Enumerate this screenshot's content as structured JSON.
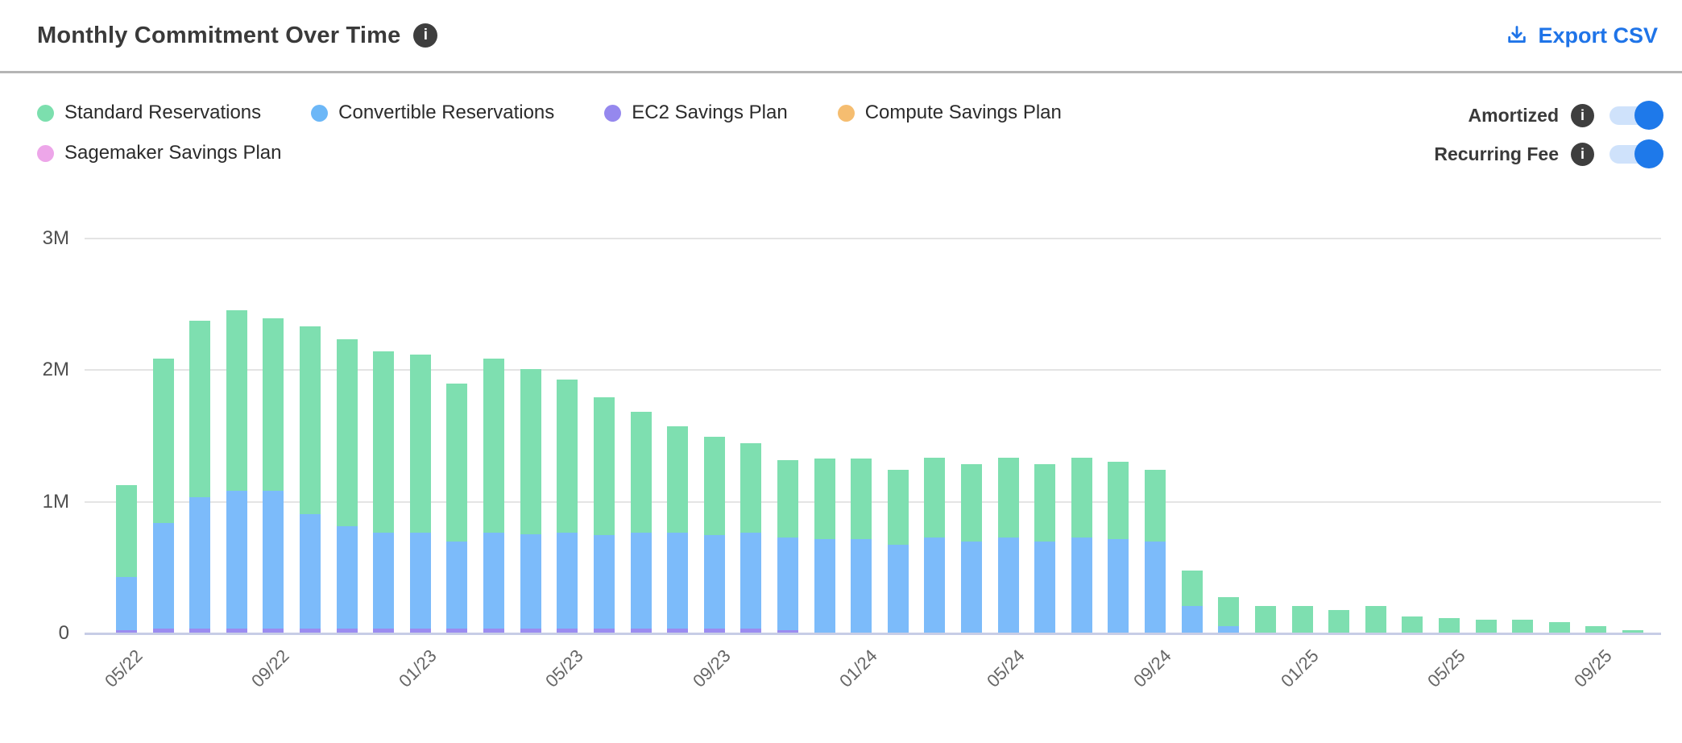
{
  "header": {
    "title": "Monthly Commitment Over Time",
    "title_info_icon": "i",
    "export_label": "Export CSV"
  },
  "legend": {
    "items": [
      {
        "label": "Standard Reservations",
        "color": "#7cdfae"
      },
      {
        "label": "Convertible Reservations",
        "color": "#6cb7f7"
      },
      {
        "label": "EC2 Savings Plan",
        "color": "#9588ee"
      },
      {
        "label": "Compute Savings Plan",
        "color": "#f5bd70"
      },
      {
        "label": "Sagemaker Savings Plan",
        "color": "#eda6e9"
      }
    ]
  },
  "toggles": [
    {
      "label": "Amortized",
      "info_icon": "i",
      "state": "on"
    },
    {
      "label": "Recurring Fee",
      "info_icon": "i",
      "state": "on"
    }
  ],
  "colors": {
    "accent_blue": "#1f74e8",
    "toggle_track": "#cfe2fb",
    "toggle_knob": "#1e79ea",
    "info_badge_bg": "#3e3e3e",
    "divider": "#b5b5b5",
    "gridline": "#e4e4e4",
    "axis_baseline": "#c7cde6"
  },
  "chart_data": {
    "type": "bar",
    "stacked": true,
    "values_unit": "millions",
    "ylim": [
      0,
      3
    ],
    "yticks": [
      {
        "label": "0",
        "value": 0
      },
      {
        "label": "1M",
        "value": 1
      },
      {
        "label": "2M",
        "value": 2
      },
      {
        "label": "3M",
        "value": 3
      }
    ],
    "xtick_every": 4,
    "categories": [
      "05/22",
      "06/22",
      "07/22",
      "08/22",
      "09/22",
      "10/22",
      "11/22",
      "12/22",
      "01/23",
      "02/23",
      "03/23",
      "04/23",
      "05/23",
      "06/23",
      "07/23",
      "08/23",
      "09/23",
      "10/23",
      "11/23",
      "12/23",
      "01/24",
      "02/24",
      "03/24",
      "04/24",
      "05/24",
      "06/24",
      "07/24",
      "08/24",
      "09/24",
      "10/24",
      "11/24",
      "12/24",
      "01/25",
      "02/25",
      "03/25",
      "04/25",
      "05/25",
      "06/25",
      "07/25",
      "08/25",
      "09/25",
      "10/25"
    ],
    "stack_order_bottom_to_top": [
      "Sagemaker Savings Plan",
      "EC2 Savings Plan",
      "Compute Savings Plan",
      "Convertible Reservations",
      "Standard Reservations"
    ],
    "series": [
      {
        "name": "Standard Reservations",
        "color": "#7edfb0",
        "values": [
          0.7,
          1.25,
          1.34,
          1.37,
          1.31,
          1.43,
          1.42,
          1.38,
          1.35,
          1.2,
          1.32,
          1.25,
          1.16,
          1.05,
          0.92,
          0.81,
          0.75,
          0.68,
          0.59,
          0.61,
          0.61,
          0.57,
          0.61,
          0.59,
          0.61,
          0.59,
          0.61,
          0.59,
          0.55,
          0.27,
          0.22,
          0.2,
          0.2,
          0.17,
          0.2,
          0.12,
          0.11,
          0.1,
          0.1,
          0.08,
          0.05,
          0.02
        ]
      },
      {
        "name": "Convertible Reservations",
        "color": "#7cbbfa",
        "values": [
          0.4,
          0.8,
          1.0,
          1.05,
          1.05,
          0.87,
          0.78,
          0.73,
          0.73,
          0.66,
          0.73,
          0.72,
          0.73,
          0.71,
          0.73,
          0.73,
          0.71,
          0.73,
          0.7,
          0.71,
          0.71,
          0.67,
          0.72,
          0.69,
          0.72,
          0.69,
          0.72,
          0.71,
          0.69,
          0.2,
          0.05,
          0,
          0,
          0,
          0,
          0,
          0,
          0,
          0,
          0,
          0,
          0
        ]
      },
      {
        "name": "EC2 Savings Plan",
        "color": "#9b8cf0",
        "values": [
          0.02,
          0.03,
          0.03,
          0.03,
          0.03,
          0.03,
          0.03,
          0.03,
          0.03,
          0.03,
          0.03,
          0.03,
          0.03,
          0.03,
          0.03,
          0.03,
          0.03,
          0.03,
          0.02,
          0,
          0,
          0,
          0,
          0,
          0,
          0,
          0,
          0,
          0,
          0,
          0,
          0,
          0,
          0,
          0,
          0,
          0,
          0,
          0,
          0,
          0,
          0
        ]
      },
      {
        "name": "Compute Savings Plan",
        "color": "#f5bd70",
        "values": [
          0,
          0,
          0,
          0,
          0,
          0,
          0,
          0,
          0,
          0,
          0,
          0,
          0,
          0,
          0,
          0,
          0,
          0,
          0,
          0,
          0,
          0,
          0,
          0,
          0,
          0,
          0,
          0,
          0,
          0,
          0,
          0,
          0,
          0,
          0,
          0,
          0,
          0,
          0,
          0,
          0,
          0
        ]
      },
      {
        "name": "Sagemaker Savings Plan",
        "color": "#eda6e9",
        "values": [
          0,
          0,
          0,
          0,
          0,
          0,
          0,
          0,
          0,
          0,
          0,
          0,
          0,
          0,
          0,
          0,
          0,
          0,
          0,
          0,
          0,
          0,
          0,
          0,
          0,
          0,
          0,
          0,
          0,
          0,
          0,
          0,
          0,
          0,
          0,
          0,
          0,
          0,
          0,
          0,
          0,
          0
        ]
      }
    ]
  }
}
